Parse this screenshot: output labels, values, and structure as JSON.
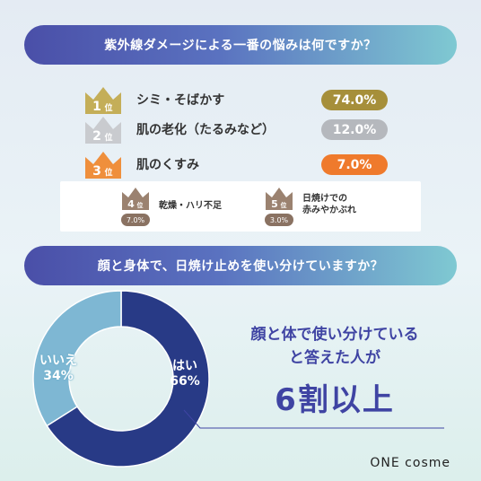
{
  "header1": "紫外線ダメージによる一番の悩みは何ですか？",
  "ranks": [
    {
      "rank": "1",
      "suffix": "位",
      "label": "シミ・そばかす",
      "value": "74.0%",
      "color": "#a68f3a",
      "crown": "#c4ae58"
    },
    {
      "rank": "2",
      "suffix": "位",
      "label": "肌の老化（たるみなど）",
      "value": "12.0%",
      "color": "#b5b8bd",
      "crown": "#c9cbcf"
    },
    {
      "rank": "3",
      "suffix": "位",
      "label": "肌のくすみ",
      "value": "7.0%",
      "color": "#ef7a2c",
      "crown": "#ef8f3c"
    }
  ],
  "minor": [
    {
      "rank": "4",
      "suffix": "位",
      "label1": "乾燥・ハリ不足",
      "label2": "",
      "value": "7.0%"
    },
    {
      "rank": "5",
      "suffix": "位",
      "label1": "日焼けでの",
      "label2": "赤みやかぶれ",
      "value": "3.0%"
    }
  ],
  "header2": "顔と身体で、日焼け止めを使い分けていますか？",
  "chart_data": {
    "type": "pie",
    "categories": [
      "はい",
      "いいえ"
    ],
    "values": [
      66,
      34
    ],
    "labels": [
      "66%",
      "34%"
    ],
    "colors": [
      "#283a86",
      "#7eb7d3"
    ]
  },
  "result": {
    "line1": "顔と体で使い分けている",
    "line2": "と答えた人が",
    "line3": "6割以上"
  },
  "brand": "ONE cosme"
}
